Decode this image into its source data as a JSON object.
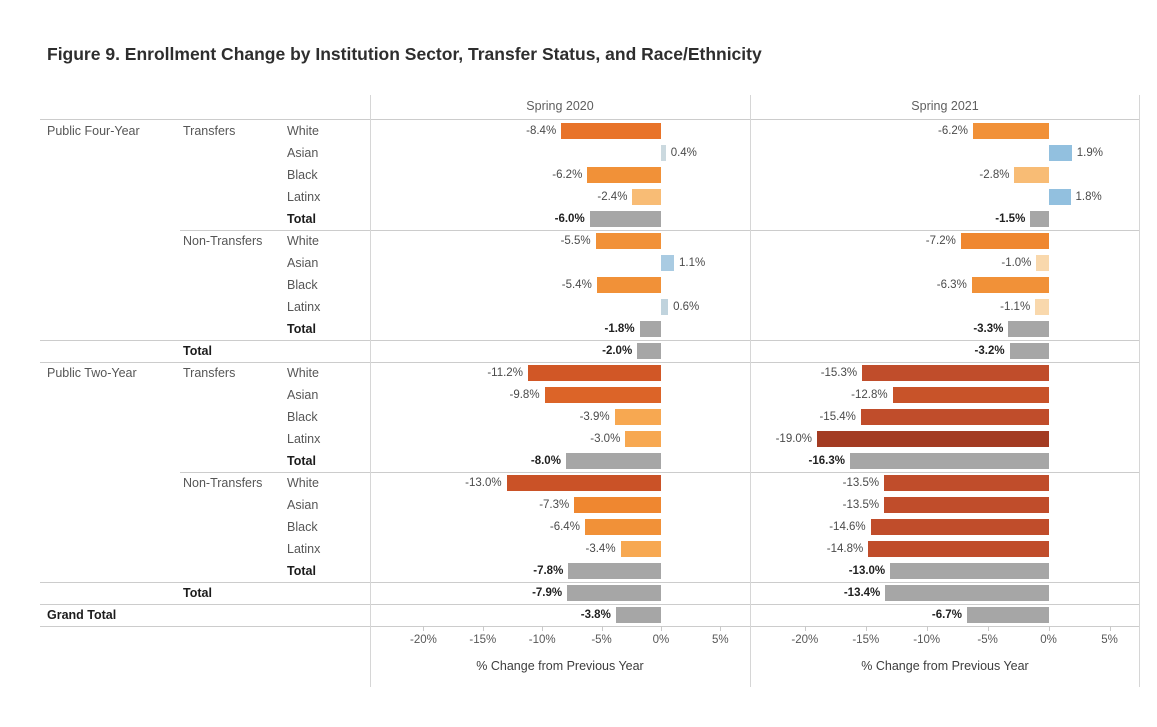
{
  "title": "Figure 9. Enrollment Change by Institution Sector, Transfer Status, and Race/Ethnicity",
  "chart_data": {
    "type": "bar",
    "orientation": "horizontal",
    "panels": [
      {
        "label": "Spring 2020"
      },
      {
        "label": "Spring 2021"
      }
    ],
    "axis": {
      "xlabel": "% Change from Previous Year",
      "ticks": [
        -20,
        -15,
        -10,
        -5,
        0,
        5
      ],
      "tick_labels": [
        "-20%",
        "-15%",
        "-10%",
        "-5%",
        "0%",
        "5%"
      ],
      "xlim": [
        -24.5,
        7.5
      ],
      "grid": false
    },
    "colors": {
      "total_bar": "#A6A6A6",
      "positive_blue": "#92C0DF",
      "strong_orange": "#E87329",
      "dark_red": "#A33B22"
    },
    "rows": [
      {
        "sector": "Public Four-Year",
        "status": "Transfers",
        "race": "White",
        "bold": false,
        "sep": "none",
        "values": [
          {
            "v": -8.4,
            "label": "-8.4%",
            "color": "#E87329"
          },
          {
            "v": -6.2,
            "label": "-6.2%",
            "color": "#F19138"
          }
        ]
      },
      {
        "race": "Asian",
        "bold": false,
        "sep": "none",
        "values": [
          {
            "v": 0.4,
            "label": "0.4%",
            "color": "#CBD9DF"
          },
          {
            "v": 1.9,
            "label": "1.9%",
            "color": "#92C0DF"
          }
        ]
      },
      {
        "race": "Black",
        "bold": false,
        "sep": "none",
        "values": [
          {
            "v": -6.2,
            "label": "-6.2%",
            "color": "#F19138"
          },
          {
            "v": -2.8,
            "label": "-2.8%",
            "color": "#F8BC75"
          }
        ]
      },
      {
        "race": "Latinx",
        "bold": false,
        "sep": "none",
        "values": [
          {
            "v": -2.4,
            "label": "-2.4%",
            "color": "#F8BC75"
          },
          {
            "v": 1.8,
            "label": "1.8%",
            "color": "#92C0DF"
          }
        ]
      },
      {
        "race": "Total",
        "bold": true,
        "sep": "none",
        "values": [
          {
            "v": -6.0,
            "label": "-6.0%",
            "color": "#A6A6A6"
          },
          {
            "v": -1.5,
            "label": "-1.5%",
            "color": "#A6A6A6"
          }
        ]
      },
      {
        "status": "Non-Transfers",
        "race": "White",
        "bold": false,
        "sep": "status",
        "values": [
          {
            "v": -5.5,
            "label": "-5.5%",
            "color": "#F19138"
          },
          {
            "v": -7.2,
            "label": "-7.2%",
            "color": "#EF8730"
          }
        ]
      },
      {
        "race": "Asian",
        "bold": false,
        "sep": "none",
        "values": [
          {
            "v": 1.1,
            "label": "1.1%",
            "color": "#A9CBE2"
          },
          {
            "v": -1.0,
            "label": "-1.0%",
            "color": "#F9D8AC"
          }
        ]
      },
      {
        "race": "Black",
        "bold": false,
        "sep": "none",
        "values": [
          {
            "v": -5.4,
            "label": "-5.4%",
            "color": "#F19138"
          },
          {
            "v": -6.3,
            "label": "-6.3%",
            "color": "#F19138"
          }
        ]
      },
      {
        "race": "Latinx",
        "bold": false,
        "sep": "none",
        "values": [
          {
            "v": 0.6,
            "label": "0.6%",
            "color": "#C0D3DD"
          },
          {
            "v": -1.1,
            "label": "-1.1%",
            "color": "#F9D8AC"
          }
        ]
      },
      {
        "race": "Total",
        "bold": true,
        "sep": "none",
        "values": [
          {
            "v": -1.8,
            "label": "-1.8%",
            "color": "#A6A6A6"
          },
          {
            "v": -3.3,
            "label": "-3.3%",
            "color": "#A6A6A6"
          }
        ]
      },
      {
        "status": "Total",
        "bold": true,
        "sep": "full",
        "values": [
          {
            "v": -2.0,
            "label": "-2.0%",
            "color": "#A6A6A6"
          },
          {
            "v": -3.2,
            "label": "-3.2%",
            "color": "#A6A6A6"
          }
        ]
      },
      {
        "sector": "Public Two-Year",
        "status": "Transfers",
        "race": "White",
        "bold": false,
        "sep": "full",
        "values": [
          {
            "v": -11.2,
            "label": "-11.2%",
            "color": "#D15726"
          },
          {
            "v": -15.3,
            "label": "-15.3%",
            "color": "#C04D2B"
          }
        ]
      },
      {
        "race": "Asian",
        "bold": false,
        "sep": "none",
        "values": [
          {
            "v": -9.8,
            "label": "-9.8%",
            "color": "#DC6428"
          },
          {
            "v": -12.8,
            "label": "-12.8%",
            "color": "#C85329"
          }
        ]
      },
      {
        "race": "Black",
        "bold": false,
        "sep": "none",
        "values": [
          {
            "v": -3.9,
            "label": "-3.9%",
            "color": "#F7A851"
          },
          {
            "v": -15.4,
            "label": "-15.4%",
            "color": "#C04D2B"
          }
        ]
      },
      {
        "race": "Latinx",
        "bold": false,
        "sep": "none",
        "values": [
          {
            "v": -3.0,
            "label": "-3.0%",
            "color": "#F7A851"
          },
          {
            "v": -19.0,
            "label": "-19.0%",
            "color": "#A33B22"
          }
        ]
      },
      {
        "race": "Total",
        "bold": true,
        "sep": "none",
        "values": [
          {
            "v": -8.0,
            "label": "-8.0%",
            "color": "#A6A6A6"
          },
          {
            "v": -16.3,
            "label": "-16.3%",
            "color": "#A6A6A6"
          }
        ]
      },
      {
        "status": "Non-Transfers",
        "race": "White",
        "bold": false,
        "sep": "status",
        "values": [
          {
            "v": -13.0,
            "label": "-13.0%",
            "color": "#CA5227"
          },
          {
            "v": -13.5,
            "label": "-13.5%",
            "color": "#C04D2B"
          }
        ]
      },
      {
        "race": "Asian",
        "bold": false,
        "sep": "none",
        "values": [
          {
            "v": -7.3,
            "label": "-7.3%",
            "color": "#EF8730"
          },
          {
            "v": -13.5,
            "label": "-13.5%",
            "color": "#C04D2B"
          }
        ]
      },
      {
        "race": "Black",
        "bold": false,
        "sep": "none",
        "values": [
          {
            "v": -6.4,
            "label": "-6.4%",
            "color": "#F19138"
          },
          {
            "v": -14.6,
            "label": "-14.6%",
            "color": "#C04D2B"
          }
        ]
      },
      {
        "race": "Latinx",
        "bold": false,
        "sep": "none",
        "values": [
          {
            "v": -3.4,
            "label": "-3.4%",
            "color": "#F7A851"
          },
          {
            "v": -14.8,
            "label": "-14.8%",
            "color": "#C04D2B"
          }
        ]
      },
      {
        "race": "Total",
        "bold": true,
        "sep": "none",
        "values": [
          {
            "v": -7.8,
            "label": "-7.8%",
            "color": "#A6A6A6"
          },
          {
            "v": -13.0,
            "label": "-13.0%",
            "color": "#A6A6A6"
          }
        ]
      },
      {
        "status": "Total",
        "bold": true,
        "sep": "full",
        "values": [
          {
            "v": -7.9,
            "label": "-7.9%",
            "color": "#A6A6A6"
          },
          {
            "v": -13.4,
            "label": "-13.4%",
            "color": "#A6A6A6"
          }
        ]
      },
      {
        "sector": "Grand Total",
        "bold": true,
        "sep": "full",
        "values": [
          {
            "v": -3.8,
            "label": "-3.8%",
            "color": "#A6A6A6"
          },
          {
            "v": -6.7,
            "label": "-6.7%",
            "color": "#A6A6A6"
          }
        ]
      }
    ]
  }
}
